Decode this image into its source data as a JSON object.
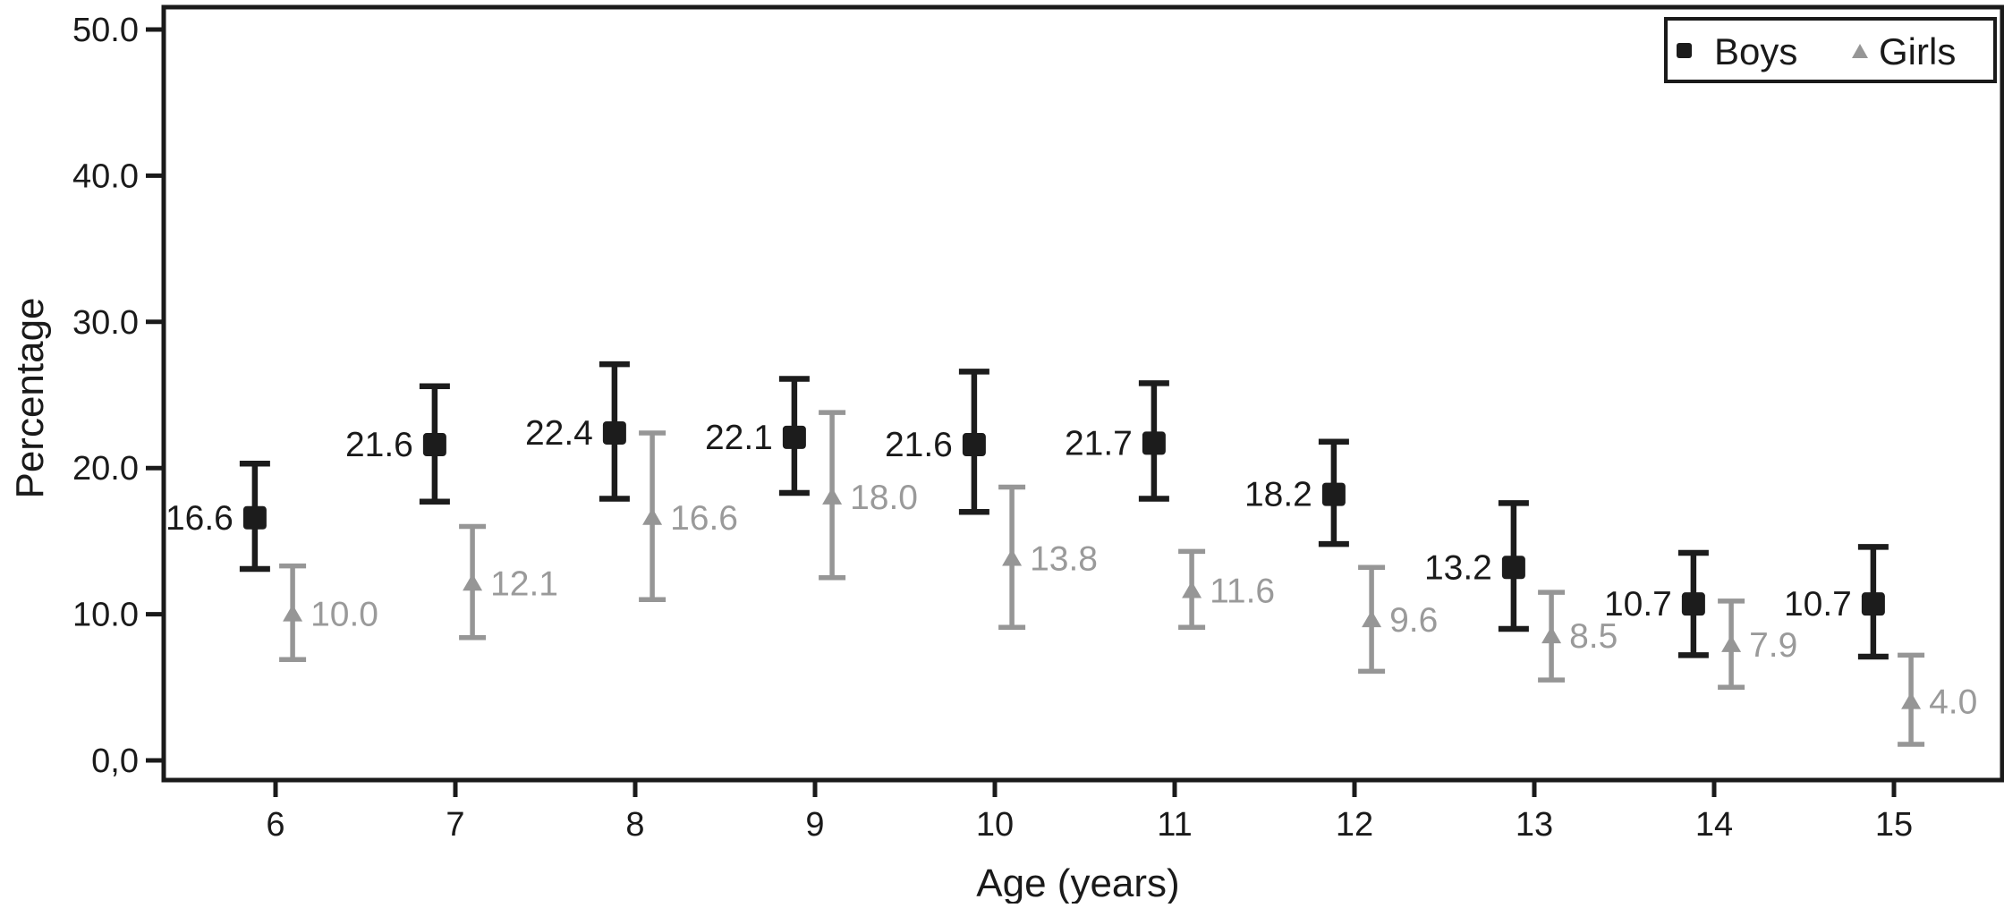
{
  "chart_data": {
    "type": "scatter",
    "title": "",
    "xlabel": "Age (years)",
    "ylabel": "Percentage",
    "grid": false,
    "legend_position": "top-right",
    "xlim": [
      5.4,
      15.6
    ],
    "ylim": [
      0,
      53
    ],
    "x_values": [
      6,
      7,
      8,
      9,
      10,
      11,
      12,
      13,
      14,
      15
    ],
    "x_tick_labels": [
      "6",
      "7",
      "8",
      "9",
      "10",
      "11",
      "12",
      "13",
      "14",
      "15"
    ],
    "y_ticks": [
      {
        "label": "0,0",
        "value": 0
      },
      {
        "label": "10.0",
        "value": 10
      },
      {
        "label": "20.0",
        "value": 20
      },
      {
        "label": "30.0",
        "value": 30
      },
      {
        "label": "40.0",
        "value": 40
      },
      {
        "label": "50.0",
        "value": 50
      }
    ],
    "series": [
      {
        "name": "Boys",
        "marker": "square",
        "color": "#1c1c1c",
        "label_color": "#1a1a1a",
        "x_offset_years": -0.115,
        "label_side": "left",
        "points": [
          {
            "x": 6,
            "y": 16.6,
            "lo": 13.1,
            "hi": 20.3,
            "label": "16.6"
          },
          {
            "x": 7,
            "y": 21.6,
            "lo": 17.7,
            "hi": 25.6,
            "label": "21.6"
          },
          {
            "x": 8,
            "y": 22.4,
            "lo": 17.9,
            "hi": 27.1,
            "label": "22.4"
          },
          {
            "x": 9,
            "y": 22.1,
            "lo": 18.3,
            "hi": 26.1,
            "label": "22.1"
          },
          {
            "x": 10,
            "y": 21.6,
            "lo": 17.0,
            "hi": 26.6,
            "label": "21.6"
          },
          {
            "x": 11,
            "y": 21.7,
            "lo": 17.9,
            "hi": 25.8,
            "label": "21.7"
          },
          {
            "x": 12,
            "y": 18.2,
            "lo": 14.8,
            "hi": 21.8,
            "label": "18.2"
          },
          {
            "x": 13,
            "y": 13.2,
            "lo": 9.0,
            "hi": 17.6,
            "label": "13.2"
          },
          {
            "x": 14,
            "y": 10.7,
            "lo": 7.2,
            "hi": 14.2,
            "label": "10.7"
          },
          {
            "x": 15,
            "y": 10.7,
            "lo": 7.1,
            "hi": 14.6,
            "label": "10.7"
          }
        ]
      },
      {
        "name": "Girls",
        "marker": "triangle",
        "color": "#969696",
        "label_color": "#9a9a9a",
        "x_offset_years": 0.095,
        "label_side": "right",
        "points": [
          {
            "x": 6,
            "y": 10.0,
            "lo": 6.9,
            "hi": 13.3,
            "label": "10.0"
          },
          {
            "x": 7,
            "y": 12.1,
            "lo": 8.4,
            "hi": 16.0,
            "label": "12.1"
          },
          {
            "x": 8,
            "y": 16.6,
            "lo": 11.0,
            "hi": 22.4,
            "label": "16.6"
          },
          {
            "x": 9,
            "y": 18.0,
            "lo": 12.5,
            "hi": 23.8,
            "label": "18.0"
          },
          {
            "x": 10,
            "y": 13.8,
            "lo": 9.1,
            "hi": 18.7,
            "label": "13.8"
          },
          {
            "x": 11,
            "y": 11.6,
            "lo": 9.1,
            "hi": 14.3,
            "label": "11.6"
          },
          {
            "x": 12,
            "y": 9.6,
            "lo": 6.1,
            "hi": 13.2,
            "label": "9.6"
          },
          {
            "x": 13,
            "y": 8.5,
            "lo": 5.5,
            "hi": 11.5,
            "label": "8.5"
          },
          {
            "x": 14,
            "y": 7.9,
            "lo": 5.0,
            "hi": 10.9,
            "label": "7.9"
          },
          {
            "x": 15,
            "y": 4.0,
            "lo": 1.1,
            "hi": 7.2,
            "label": "4.0"
          }
        ]
      }
    ],
    "axis_color": "#1a1a1a"
  }
}
